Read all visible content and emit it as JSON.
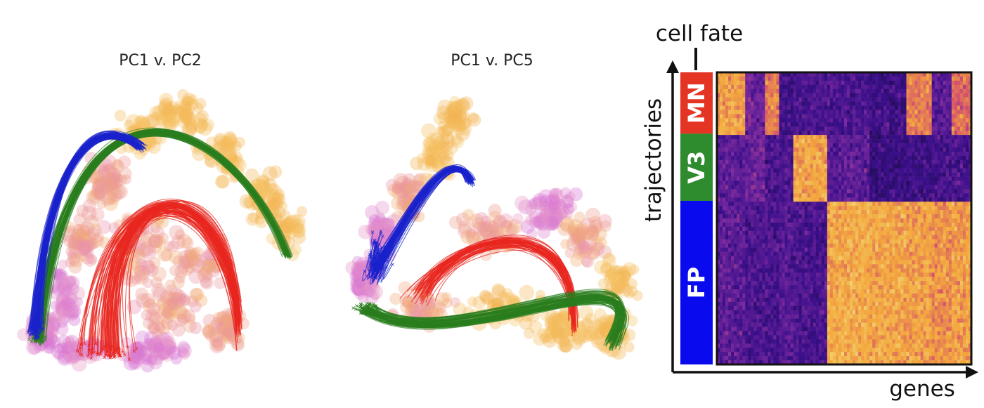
{
  "chart_data": [
    {
      "type": "scatter",
      "title": "PC1 v. PC2",
      "series": []
    },
    {
      "type": "scatter",
      "title": "PC1 v. PC5",
      "series": []
    },
    {
      "type": "heatmap",
      "title": "cell fate",
      "xlabel": "genes",
      "ylabel": "trajectories",
      "rows": [
        {
          "label": "MN",
          "color": "#e33424",
          "share": 0.21
        },
        {
          "label": "V3",
          "color": "#2e8b2e",
          "share": 0.23
        },
        {
          "label": "FP",
          "color": "#0a0aee",
          "share": 0.56
        }
      ],
      "colormap": [
        "#1b0c41",
        "#3a0f8a",
        "#7b2a9e",
        "#d5536b",
        "#f4a93d",
        "#f0d77b"
      ]
    }
  ]
}
